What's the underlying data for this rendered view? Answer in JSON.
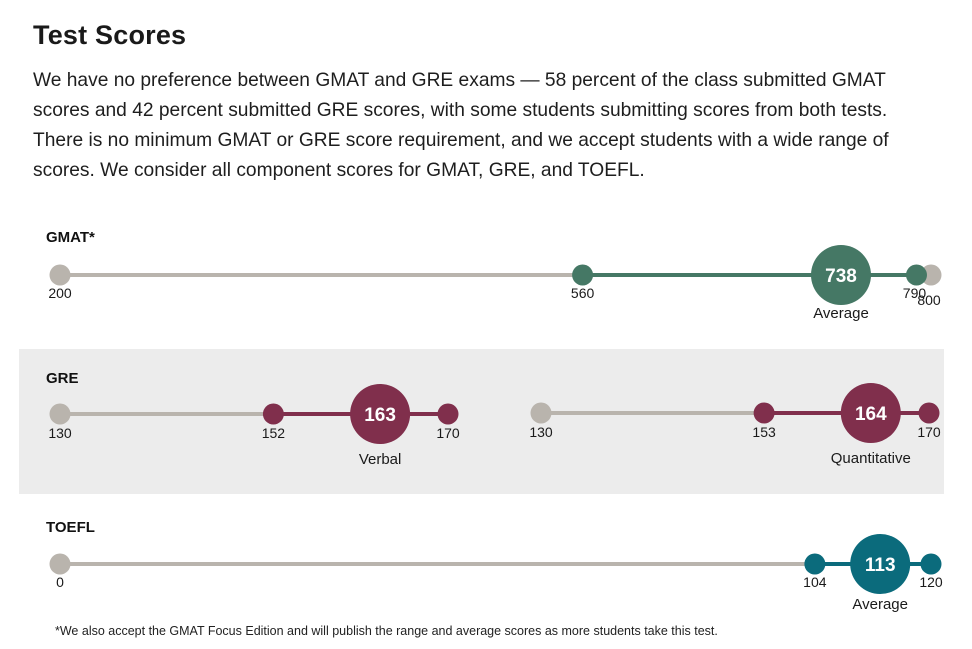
{
  "header": {
    "title": "Test Scores",
    "intro": "We have no preference between GMAT and GRE exams — 58 percent of the class submitted GMAT scores and 42 percent submitted GRE scores, with some students submitting scores from both tests. There is no minimum GMAT or GRE score requirement, and we accept students with a wide range of scores. We consider all component scores for GMAT, GRE, and TOEFL."
  },
  "colors": {
    "track": "#b9b4ad",
    "gmat": "#457865",
    "gre": "#802f4c",
    "toefl": "#0b6b7c",
    "band": "#ececec"
  },
  "tests": {
    "gmat": {
      "label": "GMAT*"
    },
    "gre": {
      "label": "GRE"
    },
    "toefl": {
      "label": "TOEFL"
    }
  },
  "chart_data": {
    "type": "range",
    "ranges": [
      {
        "id": "gmat",
        "test": "GMAT*",
        "scale_min": 200,
        "scale_max": 800,
        "range_low": 560,
        "range_high": 790,
        "average": 738,
        "caption": "Average",
        "color": "#457865"
      },
      {
        "id": "gre-verbal",
        "test": "GRE",
        "scale_min": 130,
        "scale_max": 170,
        "range_low": 152,
        "range_high": 170,
        "average": 163,
        "caption": "Verbal",
        "color": "#802f4c"
      },
      {
        "id": "gre-quant",
        "test": "GRE",
        "scale_min": 130,
        "scale_max": 170,
        "range_low": 153,
        "range_high": 170,
        "average": 164,
        "caption": "Quantitative",
        "color": "#802f4c"
      },
      {
        "id": "toefl",
        "test": "TOEFL",
        "scale_min": 0,
        "scale_max": 120,
        "range_low": 104,
        "range_high": 120,
        "average": 113,
        "caption": "Average",
        "color": "#0b6b7c"
      }
    ]
  },
  "footnote": "*We also accept the GMAT Focus Edition and will publish the range and average scores as more students take this test."
}
